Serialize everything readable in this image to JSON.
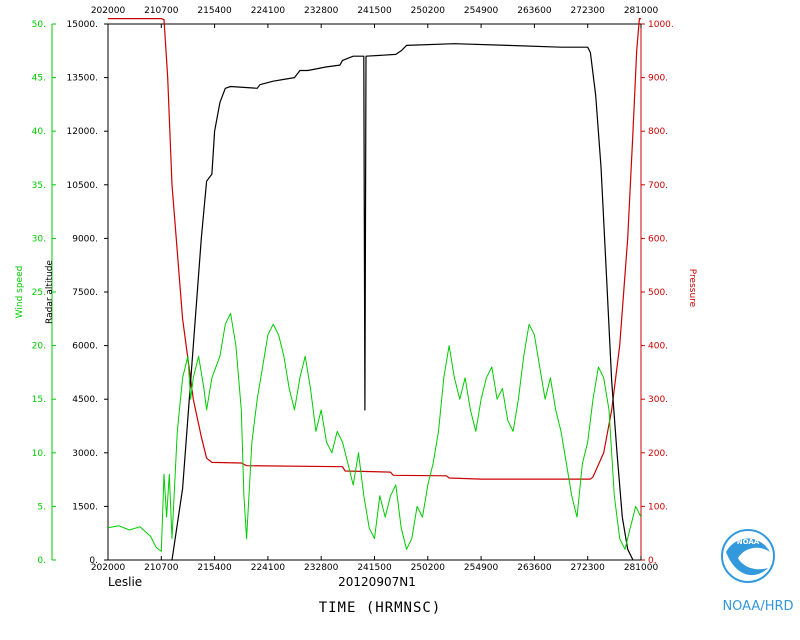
{
  "chart_data": {
    "type": "line",
    "xlabel": "TIME (HRMNSC)",
    "storm_name": "Leslie",
    "flight_id": "20120907N1",
    "branding": "NOAA/HRD",
    "logo_label": "NOAA",
    "x_ticks": [
      "202000",
      "210700",
      "215400",
      "224100",
      "232800",
      "241500",
      "250200",
      "254900",
      "263600",
      "272300",
      "281000"
    ],
    "xlim": [
      0,
      10
    ],
    "axes": {
      "wind": {
        "label": "Wind speed",
        "color": "#00cc00",
        "ylim": [
          0,
          50
        ],
        "ticks": [
          "0.",
          "5.",
          "10.",
          "15.",
          "20.",
          "25.",
          "30.",
          "35.",
          "40.",
          "45.",
          "50."
        ]
      },
      "altitude": {
        "label": "Radar altitude",
        "color": "#000000",
        "ylim": [
          0,
          15000
        ],
        "ticks": [
          "0.",
          "1500.",
          "3000.",
          "4500.",
          "6000.",
          "7500.",
          "9000.",
          "10500.",
          "12000.",
          "13500.",
          "15000."
        ]
      },
      "pressure": {
        "label": "Pressure",
        "color": "#cc0000",
        "ylim": [
          0,
          1000
        ],
        "ticks": [
          "0.",
          "100.",
          "200.",
          "300.",
          "400.",
          "500.",
          "600.",
          "700.",
          "800.",
          "900.",
          "1000."
        ]
      }
    },
    "series": [
      {
        "name": "Pressure",
        "axis": "pressure",
        "color": "#cc0000",
        "points": [
          [
            0,
            1010
          ],
          [
            1.0,
            1010
          ],
          [
            1.05,
            1008
          ],
          [
            1.12,
            900
          ],
          [
            1.2,
            700
          ],
          [
            1.4,
            450
          ],
          [
            1.6,
            300
          ],
          [
            1.75,
            230
          ],
          [
            1.85,
            190
          ],
          [
            1.95,
            182
          ],
          [
            2.5,
            181
          ],
          [
            2.6,
            176
          ],
          [
            4.4,
            174
          ],
          [
            4.45,
            166
          ],
          [
            5.3,
            164
          ],
          [
            5.35,
            158
          ],
          [
            6.35,
            157
          ],
          [
            6.4,
            153
          ],
          [
            7.0,
            151
          ],
          [
            9.05,
            151
          ],
          [
            9.1,
            155
          ],
          [
            9.3,
            200
          ],
          [
            9.45,
            280
          ],
          [
            9.6,
            400
          ],
          [
            9.75,
            600
          ],
          [
            9.85,
            800
          ],
          [
            9.92,
            950
          ],
          [
            9.97,
            1010
          ],
          [
            10,
            1010
          ]
        ]
      },
      {
        "name": "Radar altitude",
        "axis": "altitude",
        "color": "#000000",
        "points": [
          [
            1.2,
            0
          ],
          [
            1.4,
            2000
          ],
          [
            1.6,
            6000
          ],
          [
            1.75,
            9000
          ],
          [
            1.85,
            10600
          ],
          [
            1.95,
            10800
          ],
          [
            2.0,
            12000
          ],
          [
            2.1,
            12800
          ],
          [
            2.2,
            13200
          ],
          [
            2.3,
            13250
          ],
          [
            2.8,
            13200
          ],
          [
            2.85,
            13300
          ],
          [
            3.1,
            13400
          ],
          [
            3.3,
            13450
          ],
          [
            3.5,
            13500
          ],
          [
            3.6,
            13700
          ],
          [
            3.75,
            13700
          ],
          [
            4.1,
            13800
          ],
          [
            4.35,
            13850
          ],
          [
            4.4,
            13980
          ],
          [
            4.6,
            14100
          ],
          [
            4.8,
            14100
          ],
          [
            4.82,
            4200
          ],
          [
            4.84,
            14100
          ],
          [
            5.4,
            14150
          ],
          [
            5.5,
            14250
          ],
          [
            5.6,
            14400
          ],
          [
            6.5,
            14450
          ],
          [
            7.5,
            14400
          ],
          [
            8.5,
            14350
          ],
          [
            9.0,
            14350
          ],
          [
            9.05,
            14200
          ],
          [
            9.15,
            13000
          ],
          [
            9.25,
            11000
          ],
          [
            9.35,
            8000
          ],
          [
            9.45,
            5000
          ],
          [
            9.55,
            3000
          ],
          [
            9.65,
            1200
          ],
          [
            9.75,
            300
          ],
          [
            9.85,
            0
          ]
        ]
      },
      {
        "name": "Wind speed",
        "axis": "wind",
        "color": "#00cc00",
        "points": [
          [
            0,
            3
          ],
          [
            0.2,
            3.2
          ],
          [
            0.4,
            2.8
          ],
          [
            0.6,
            3.1
          ],
          [
            0.8,
            2.2
          ],
          [
            0.9,
            1.2
          ],
          [
            1.0,
            0.8
          ],
          [
            1.05,
            8
          ],
          [
            1.1,
            4
          ],
          [
            1.15,
            8
          ],
          [
            1.2,
            2
          ],
          [
            1.3,
            12
          ],
          [
            1.4,
            17
          ],
          [
            1.5,
            19
          ],
          [
            1.55,
            15
          ],
          [
            1.6,
            17
          ],
          [
            1.7,
            19
          ],
          [
            1.8,
            16
          ],
          [
            1.85,
            14
          ],
          [
            1.95,
            17
          ],
          [
            2.1,
            19
          ],
          [
            2.2,
            22
          ],
          [
            2.3,
            23
          ],
          [
            2.4,
            20
          ],
          [
            2.5,
            14
          ],
          [
            2.55,
            6
          ],
          [
            2.6,
            2
          ],
          [
            2.7,
            11
          ],
          [
            2.8,
            15
          ],
          [
            2.9,
            18
          ],
          [
            3.0,
            21
          ],
          [
            3.1,
            22
          ],
          [
            3.2,
            21
          ],
          [
            3.3,
            19
          ],
          [
            3.4,
            16
          ],
          [
            3.5,
            14
          ],
          [
            3.6,
            17
          ],
          [
            3.7,
            19
          ],
          [
            3.8,
            16
          ],
          [
            3.9,
            12
          ],
          [
            4.0,
            14
          ],
          [
            4.1,
            11
          ],
          [
            4.2,
            10
          ],
          [
            4.3,
            12
          ],
          [
            4.4,
            11
          ],
          [
            4.5,
            9
          ],
          [
            4.6,
            7
          ],
          [
            4.7,
            10
          ],
          [
            4.8,
            6
          ],
          [
            4.9,
            3
          ],
          [
            5.0,
            2
          ],
          [
            5.1,
            6
          ],
          [
            5.2,
            4
          ],
          [
            5.3,
            6
          ],
          [
            5.4,
            7
          ],
          [
            5.5,
            3
          ],
          [
            5.6,
            1
          ],
          [
            5.7,
            2
          ],
          [
            5.8,
            5
          ],
          [
            5.9,
            4
          ],
          [
            6.0,
            7
          ],
          [
            6.1,
            9
          ],
          [
            6.2,
            12
          ],
          [
            6.3,
            17
          ],
          [
            6.4,
            20
          ],
          [
            6.5,
            17
          ],
          [
            6.6,
            15
          ],
          [
            6.7,
            17
          ],
          [
            6.8,
            14
          ],
          [
            6.9,
            12
          ],
          [
            7.0,
            15
          ],
          [
            7.1,
            17
          ],
          [
            7.2,
            18
          ],
          [
            7.3,
            15
          ],
          [
            7.4,
            16
          ],
          [
            7.5,
            13
          ],
          [
            7.6,
            12
          ],
          [
            7.7,
            15
          ],
          [
            7.8,
            19
          ],
          [
            7.9,
            22
          ],
          [
            8.0,
            21
          ],
          [
            8.1,
            18
          ],
          [
            8.2,
            15
          ],
          [
            8.3,
            17
          ],
          [
            8.4,
            14
          ],
          [
            8.5,
            12
          ],
          [
            8.6,
            9
          ],
          [
            8.7,
            6
          ],
          [
            8.8,
            4
          ],
          [
            8.9,
            9
          ],
          [
            9.0,
            11
          ],
          [
            9.1,
            15
          ],
          [
            9.2,
            18
          ],
          [
            9.3,
            17
          ],
          [
            9.4,
            14
          ],
          [
            9.5,
            6
          ],
          [
            9.6,
            2
          ],
          [
            9.7,
            1
          ],
          [
            9.8,
            3
          ],
          [
            9.9,
            5
          ],
          [
            10.0,
            4
          ]
        ]
      }
    ]
  }
}
